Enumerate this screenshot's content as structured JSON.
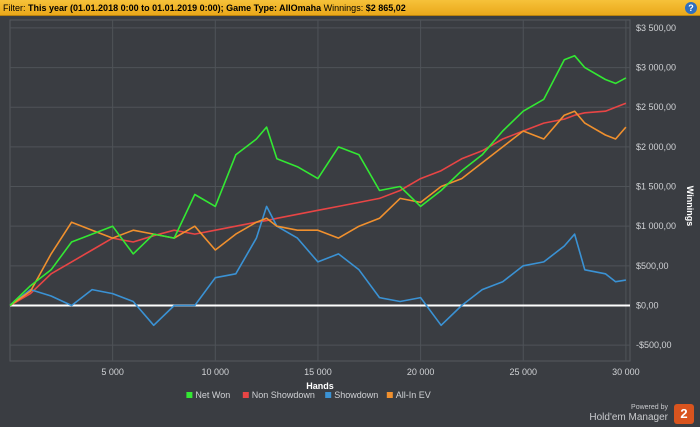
{
  "filter": {
    "prefix": "Filter: ",
    "bold_text": "This year (01.01.2018 0:00 to 01.01.2019 0:00); Game Type: AllOmaha",
    "winnings_label": " Winnings: ",
    "winnings_value": "$2 865,02",
    "help_label": "?"
  },
  "branding": {
    "powered_by": "Powered by",
    "product": "Hold'em Manager",
    "logo_text": "2"
  },
  "chart_data": {
    "type": "line",
    "xlabel": "Hands",
    "ylabel": "Winnings",
    "xlim": [
      0,
      30200
    ],
    "ylim": [
      -700,
      3600
    ],
    "x_ticks": [
      5000,
      10000,
      15000,
      20000,
      25000,
      30000
    ],
    "x_tick_labels": [
      "5 000",
      "10 000",
      "15 000",
      "20 000",
      "25 000",
      "30 000"
    ],
    "y_ticks": [
      -500,
      0,
      500,
      1000,
      1500,
      2000,
      2500,
      3000,
      3500
    ],
    "y_tick_labels": [
      "-$500,00",
      "$0,00",
      "$500,00",
      "$1 000,00",
      "$1 500,00",
      "$2 000,00",
      "$2 500,00",
      "$3 000,00",
      "$3 500,00"
    ],
    "grid": true,
    "zero_line": true,
    "legend_position": "bottom",
    "x": [
      0,
      1000,
      2000,
      3000,
      4000,
      5000,
      6000,
      7000,
      8000,
      9000,
      10000,
      11000,
      12000,
      12500,
      13000,
      14000,
      15000,
      16000,
      17000,
      18000,
      19000,
      20000,
      21000,
      22000,
      23000,
      24000,
      25000,
      26000,
      27000,
      27500,
      28000,
      29000,
      29500,
      30000
    ],
    "series": [
      {
        "name": "Net Won",
        "color": "#33e833",
        "values": [
          0,
          250,
          450,
          800,
          900,
          1000,
          650,
          900,
          850,
          1400,
          1250,
          1900,
          2100,
          2250,
          1850,
          1750,
          1600,
          2000,
          1900,
          1450,
          1500,
          1250,
          1450,
          1700,
          1900,
          2200,
          2450,
          2600,
          3100,
          3150,
          3000,
          2850,
          2800,
          2870
        ]
      },
      {
        "name": "Non Showdown",
        "color": "#e84545",
        "values": [
          0,
          150,
          400,
          550,
          700,
          850,
          800,
          880,
          950,
          900,
          950,
          1000,
          1050,
          1070,
          1100,
          1150,
          1200,
          1250,
          1300,
          1350,
          1450,
          1600,
          1700,
          1850,
          1950,
          2100,
          2200,
          2300,
          2350,
          2400,
          2430,
          2450,
          2500,
          2550
        ]
      },
      {
        "name": "Showdown",
        "color": "#3a92d4",
        "values": [
          0,
          200,
          120,
          0,
          200,
          150,
          50,
          -250,
          0,
          0,
          350,
          400,
          850,
          1250,
          1000,
          850,
          550,
          650,
          450,
          100,
          50,
          100,
          -250,
          0,
          200,
          300,
          500,
          550,
          750,
          900,
          450,
          400,
          300,
          320
        ]
      },
      {
        "name": "All-In EV",
        "color": "#f0902e",
        "values": [
          0,
          180,
          650,
          1050,
          950,
          850,
          950,
          900,
          850,
          1000,
          700,
          900,
          1050,
          1100,
          1000,
          950,
          950,
          850,
          1000,
          1100,
          1350,
          1300,
          1500,
          1600,
          1800,
          2000,
          2200,
          2100,
          2400,
          2450,
          2300,
          2150,
          2100,
          2250
        ]
      }
    ]
  }
}
